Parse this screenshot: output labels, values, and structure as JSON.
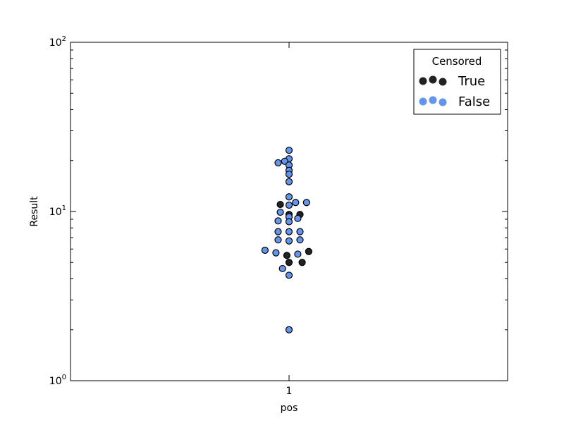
{
  "chart_data": {
    "type": "scatter",
    "style": "swarm",
    "xlabel": "pos",
    "ylabel": "Result",
    "x_categories": [
      "1"
    ],
    "y_scale": "log",
    "ylim": [
      1,
      100
    ],
    "y_ticks": [
      {
        "value": 1,
        "base": "10",
        "exp": "0"
      },
      {
        "value": 10,
        "base": "10",
        "exp": "1"
      },
      {
        "value": 100,
        "base": "10",
        "exp": "2"
      }
    ],
    "grid": false,
    "legend": {
      "title": "Censored",
      "placement": "top-right",
      "entries": [
        {
          "label": "True",
          "color": "#222222"
        },
        {
          "label": "False",
          "color": "#6495ed"
        }
      ]
    },
    "series": [
      {
        "name": "True",
        "color": "#222222",
        "points": [
          {
            "x": 0.96,
            "y": 11.0
          },
          {
            "x": 1.0,
            "y": 9.6
          },
          {
            "x": 1.05,
            "y": 9.6
          },
          {
            "x": 1.09,
            "y": 5.8
          },
          {
            "x": 0.99,
            "y": 5.5
          },
          {
            "x": 1.0,
            "y": 5.0
          },
          {
            "x": 1.06,
            "y": 5.0
          }
        ]
      },
      {
        "name": "False",
        "color": "#6495ed",
        "points": [
          {
            "x": 1.0,
            "y": 23.0
          },
          {
            "x": 1.0,
            "y": 20.5
          },
          {
            "x": 0.98,
            "y": 19.8
          },
          {
            "x": 0.95,
            "y": 19.4
          },
          {
            "x": 1.0,
            "y": 18.8
          },
          {
            "x": 1.0,
            "y": 17.5
          },
          {
            "x": 1.0,
            "y": 16.6
          },
          {
            "x": 1.0,
            "y": 15.0
          },
          {
            "x": 1.0,
            "y": 12.2
          },
          {
            "x": 1.03,
            "y": 11.3
          },
          {
            "x": 1.08,
            "y": 11.3
          },
          {
            "x": 1.0,
            "y": 10.9
          },
          {
            "x": 0.96,
            "y": 9.9
          },
          {
            "x": 1.0,
            "y": 9.3
          },
          {
            "x": 1.04,
            "y": 9.1
          },
          {
            "x": 0.95,
            "y": 8.8
          },
          {
            "x": 1.0,
            "y": 8.7
          },
          {
            "x": 0.95,
            "y": 7.6
          },
          {
            "x": 1.0,
            "y": 7.6
          },
          {
            "x": 1.05,
            "y": 7.6
          },
          {
            "x": 0.95,
            "y": 6.8
          },
          {
            "x": 1.0,
            "y": 6.7
          },
          {
            "x": 1.05,
            "y": 6.8
          },
          {
            "x": 0.89,
            "y": 5.9
          },
          {
            "x": 0.94,
            "y": 5.7
          },
          {
            "x": 1.04,
            "y": 5.6
          },
          {
            "x": 0.97,
            "y": 4.6
          },
          {
            "x": 1.0,
            "y": 4.2
          },
          {
            "x": 1.0,
            "y": 2.0
          }
        ]
      }
    ]
  }
}
